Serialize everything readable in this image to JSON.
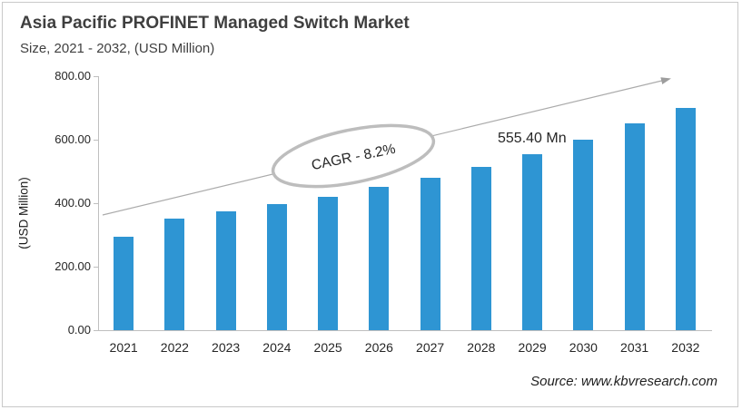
{
  "header": {
    "title": "Asia Pacific PROFINET Managed Switch Market",
    "subtitle": "Size, 2021 - 2032, (USD Million)"
  },
  "footer": {
    "source": "Source: www.kbvresearch.com"
  },
  "chart_data": {
    "type": "bar",
    "title": "Asia Pacific PROFINET Managed Switch Market",
    "subtitle": "Size, 2021 - 2032, (USD Million)",
    "categories": [
      "2021",
      "2022",
      "2023",
      "2024",
      "2025",
      "2026",
      "2027",
      "2028",
      "2029",
      "2030",
      "2031",
      "2032"
    ],
    "values": [
      295,
      350,
      375,
      397,
      421,
      450,
      481,
      514,
      555.4,
      600,
      650,
      700
    ],
    "unit": "USD Million",
    "xlabel": "",
    "ylabel": "(USD Million)",
    "ylim": [
      0,
      800
    ],
    "ytick_step": 200,
    "ytick_labels": [
      "0.00",
      "200.00",
      "400.00",
      "600.00",
      "800.00"
    ],
    "grid": false,
    "legend": "none",
    "bar_color": "#2e95d3",
    "axis_color": "#bfbfbf",
    "annotations": [
      {
        "text": "CAGR - 8.2%",
        "kind": "rotated-ellipse-callout",
        "stroke_color": "#bdbdbd"
      },
      {
        "text": "555.40 Mn",
        "kind": "value-label",
        "category": "2029",
        "value": 555.4
      }
    ],
    "trend_arrow": {
      "present": true,
      "color": "#ababab"
    }
  }
}
